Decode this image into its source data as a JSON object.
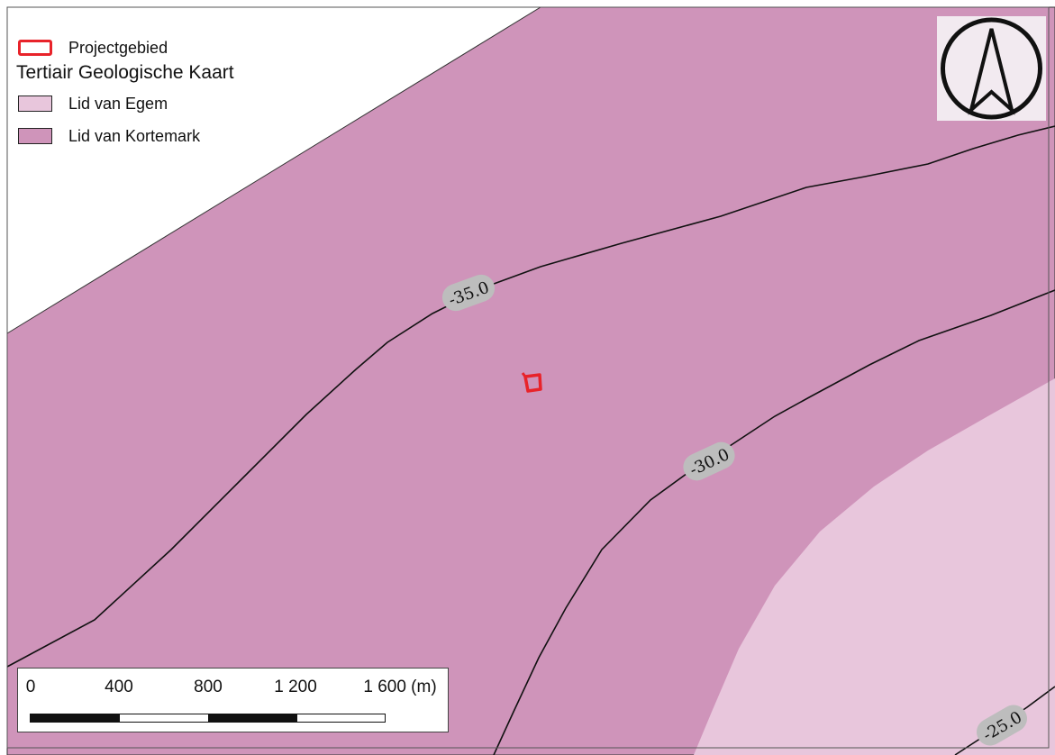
{
  "legend": {
    "project_area": {
      "label": "Projectgebied",
      "color": "#e8232a"
    },
    "geology_title": "Tertiair Geologische Kaart",
    "units": [
      {
        "label": "Lid van Egem",
        "color": "#e8c6dc"
      },
      {
        "label": "Lid van Kortemark",
        "color": "#cf94ba"
      }
    ]
  },
  "contours": [
    {
      "label": "-35.0"
    },
    {
      "label": "-30.0"
    },
    {
      "label": "-25.0"
    }
  ],
  "contour_label_bg": "#bdbdbd",
  "north_arrow": {
    "icon": "north-arrow-icon"
  },
  "scale_bar": {
    "ticks": [
      "0",
      "400",
      "800",
      "1 200",
      "1 600 (m)"
    ]
  }
}
